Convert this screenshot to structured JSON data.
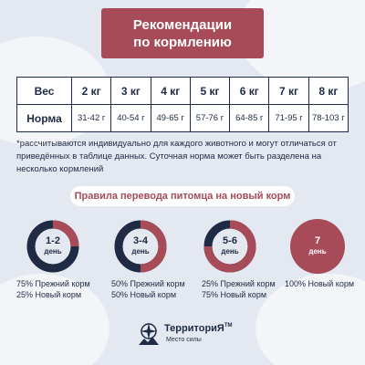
{
  "header": {
    "title_line1": "Рекомендации",
    "title_line2": "по кормлению"
  },
  "table": {
    "row_weight_label": "Вес",
    "row_norm_label": "Норма",
    "columns": [
      {
        "weight": "2 кг",
        "norm": "31-42 г"
      },
      {
        "weight": "3 кг",
        "norm": "40-54 г"
      },
      {
        "weight": "4 кг",
        "norm": "49-65 г"
      },
      {
        "weight": "5 кг",
        "norm": "57-76 г"
      },
      {
        "weight": "6 кг",
        "norm": "64-85 г"
      },
      {
        "weight": "7 кг",
        "norm": "71-95 г"
      },
      {
        "weight": "8 кг",
        "norm": "78-103 г"
      }
    ]
  },
  "note": "*рассчитываются индивидуально для каждого животного и могут отличаться от приведённых в таблице данных. Суточная норма может быть разделена на несколько кормлений",
  "rules": {
    "title": "Правила перевода питомца на новый корм",
    "steps": [
      {
        "days": "1-2",
        "day_word": "день",
        "new_share": 0.25,
        "caption_line1": "75% Прежний корм",
        "caption_line2": "25% Новый корм"
      },
      {
        "days": "3-4",
        "day_word": "день",
        "new_share": 0.5,
        "caption_line1": "50% Прежний корм",
        "caption_line2": "50% Новый корм"
      },
      {
        "days": "5-6",
        "day_word": "день",
        "new_share": 0.75,
        "caption_line1": "25% Прежний корм",
        "caption_line2": "75% Новый корм"
      },
      {
        "days": "7",
        "day_word": "день",
        "new_share": 1.0,
        "caption_line1": "100% Новый корм",
        "caption_line2": ""
      }
    ]
  },
  "colors": {
    "accent": "#a64b57",
    "dark": "#1f2a44",
    "background": "#e4e8f0"
  },
  "logo": {
    "name": "ТерриториЯ",
    "tm": "TM",
    "slogan": "Место силы",
    "icon": "compass-icon"
  }
}
